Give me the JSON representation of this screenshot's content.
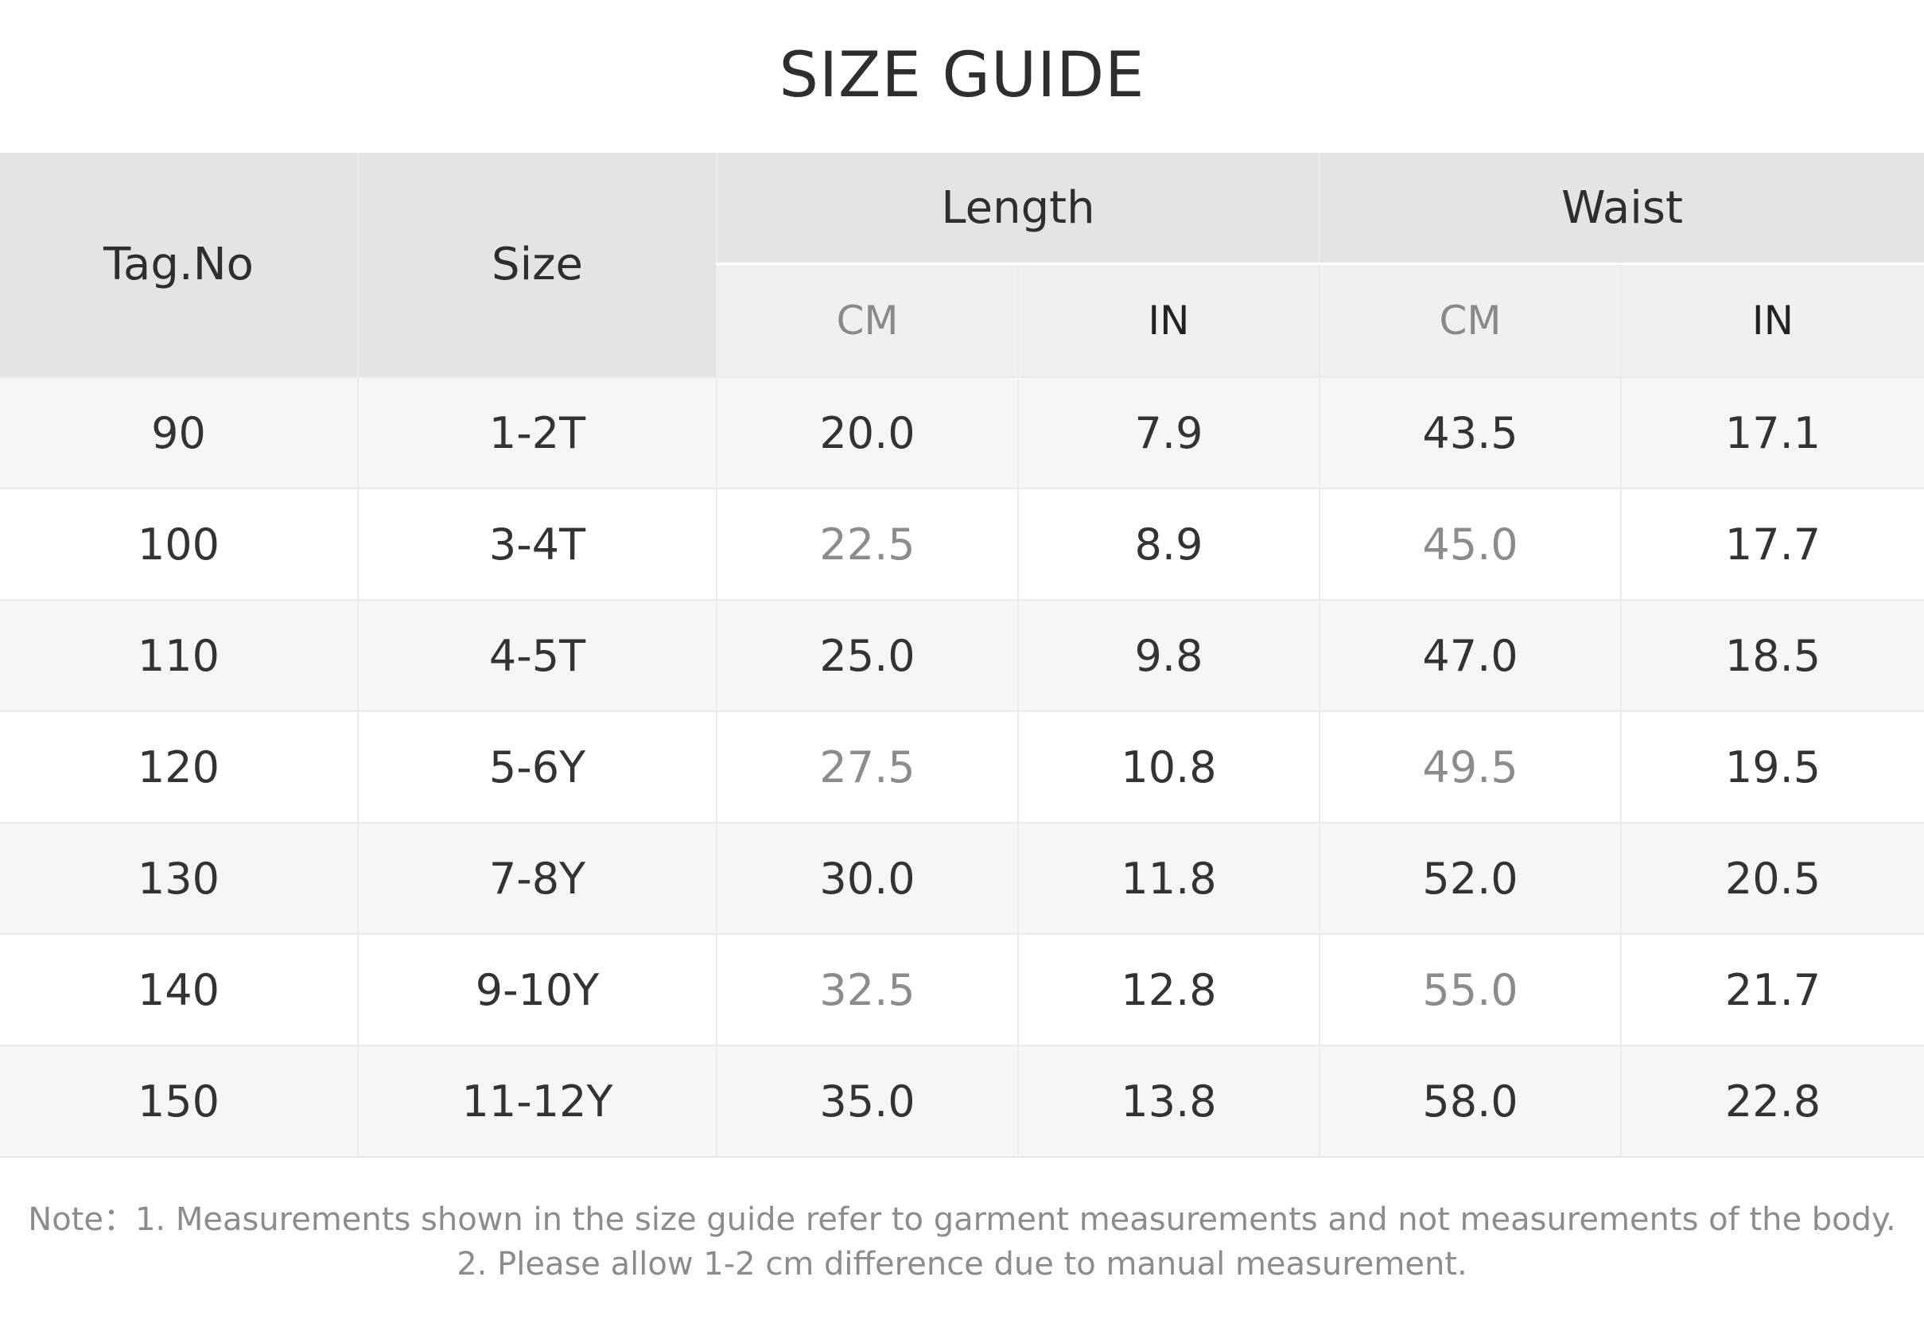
{
  "title": "SIZE GUIDE",
  "table": {
    "headers": {
      "tag_no": "Tag.No",
      "size": "Size",
      "length": "Length",
      "waist": "Waist",
      "length_cm": "CM",
      "length_in": "IN",
      "waist_cm": "CM",
      "waist_in": "IN"
    },
    "rows": [
      {
        "tag": "90",
        "size": "1-2T",
        "length_cm": "20.0",
        "length_in": "7.9",
        "waist_cm": "43.5",
        "waist_in": "17.1"
      },
      {
        "tag": "100",
        "size": "3-4T",
        "length_cm": "22.5",
        "length_in": "8.9",
        "waist_cm": "45.0",
        "waist_in": "17.7"
      },
      {
        "tag": "110",
        "size": "4-5T",
        "length_cm": "25.0",
        "length_in": "9.8",
        "waist_cm": "47.0",
        "waist_in": "18.5"
      },
      {
        "tag": "120",
        "size": "5-6Y",
        "length_cm": "27.5",
        "length_in": "10.8",
        "waist_cm": "49.5",
        "waist_in": "19.5"
      },
      {
        "tag": "130",
        "size": "7-8Y",
        "length_cm": "30.0",
        "length_in": "11.8",
        "waist_cm": "52.0",
        "waist_in": "20.5"
      },
      {
        "tag": "140",
        "size": "9-10Y",
        "length_cm": "32.5",
        "length_in": "12.8",
        "waist_cm": "55.0",
        "waist_in": "21.7"
      },
      {
        "tag": "150",
        "size": "11-12Y",
        "length_cm": "35.0",
        "length_in": "13.8",
        "waist_cm": "58.0",
        "waist_in": "22.8"
      }
    ]
  },
  "note": {
    "line1": "Note：1. Measurements shown in the size guide refer to garment measurements and not measurements of the body.",
    "line2": "2. Please allow 1-2 cm difference due to manual measurement."
  },
  "colors": {
    "header_bg": "#e4e4e4",
    "subheader_bg": "#f0f0f0",
    "row_alt_bg": "#f6f6f6",
    "text_dark": "#333333",
    "text_muted": "#8c8c8c"
  }
}
